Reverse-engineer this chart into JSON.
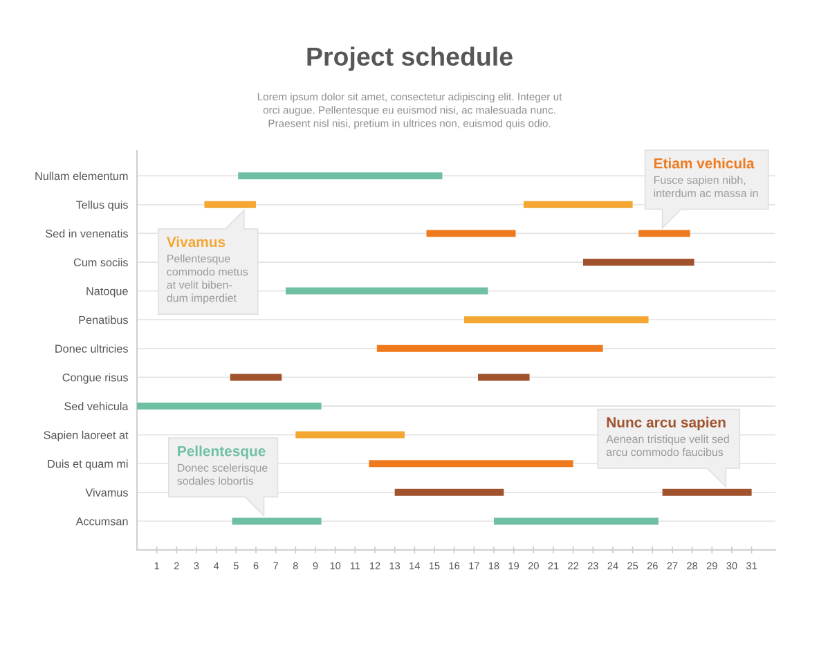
{
  "chart_data": {
    "type": "bar",
    "orientation": "horizontal",
    "title": "Project schedule",
    "subtitle": "Lorem ipsum dolor sit amet, consectetur adipiscing elit. Integer ut\norci augue. Pellentesque eu euismod nisi, ac malesuada nunc.\nPraesent nisl nisi, pretium in ultrices non, euismod quis odio.",
    "categories": [
      "Nullam elementum",
      "Tellus quis",
      "Sed in venenatis",
      "Cum sociis",
      "Natoque",
      "Penatibus",
      "Donec ultricies",
      "Congue risus",
      "Sed vehicula",
      "Sapien laoreet at",
      "Duis et quam mi",
      "Vivamus",
      "Accumsan"
    ],
    "series": [
      {
        "base": [
          5.1,
          3.4,
          14.6,
          22.5,
          7.5,
          16.5,
          12.1,
          4.7,
          0,
          8.0,
          11.7,
          13.0,
          4.8
        ],
        "values": [
          10.3,
          2.6,
          4.5,
          5.6,
          10.2,
          9.3,
          11.4,
          2.6,
          9.3,
          5.5,
          10.3,
          5.5,
          4.5
        ],
        "colors": [
          "#6fc0a3",
          "#f4a733",
          "#ef7a1e",
          "#a0522d",
          "#6fc0a3",
          "#f4a733",
          "#ef7a1e",
          "#a0522d",
          "#6fc0a3",
          "#f4a733",
          "#ef7a1e",
          "#a0522d",
          "#6fc0a3"
        ]
      },
      {
        "base": [
          null,
          19.5,
          25.3,
          null,
          null,
          null,
          null,
          17.2,
          null,
          null,
          null,
          26.5,
          18.0
        ],
        "values": [
          null,
          5.5,
          2.6,
          null,
          null,
          null,
          null,
          2.6,
          null,
          null,
          null,
          4.5,
          8.3
        ],
        "colors": [
          null,
          "#f4a733",
          "#ef7a1e",
          null,
          null,
          null,
          null,
          "#a0522d",
          null,
          null,
          null,
          "#a0522d",
          "#6fc0a3"
        ]
      }
    ],
    "xlim": [
      0,
      32.2
    ],
    "xticks": [
      1,
      2,
      3,
      4,
      5,
      6,
      7,
      8,
      9,
      10,
      11,
      12,
      13,
      14,
      15,
      16,
      17,
      18,
      19,
      20,
      21,
      22,
      23,
      24,
      25,
      26,
      27,
      28,
      29,
      30,
      31
    ],
    "grid": "y",
    "annotations": [
      {
        "text": "Vivamus\nPellentesque\ncommodo metus\nat velit biben-\ndum imperdiet",
        "x": 5.4,
        "y": "Tellus quis"
      },
      {
        "text": "Etiam vehicula\nFusce sapien nibh,\ninterdum ac massa in",
        "x": 26.5,
        "y": "Sed in venenatis"
      },
      {
        "text": "Nunc arcu sapien\nAenean tristique velit sed\narcu commodo faucibus",
        "x": 29.7,
        "y": "Vivamus"
      },
      {
        "text": "Pellentesque\nDonec scelerisque\nsodales lobortis",
        "x": 6.4,
        "y": "Accumsan"
      }
    ]
  }
}
